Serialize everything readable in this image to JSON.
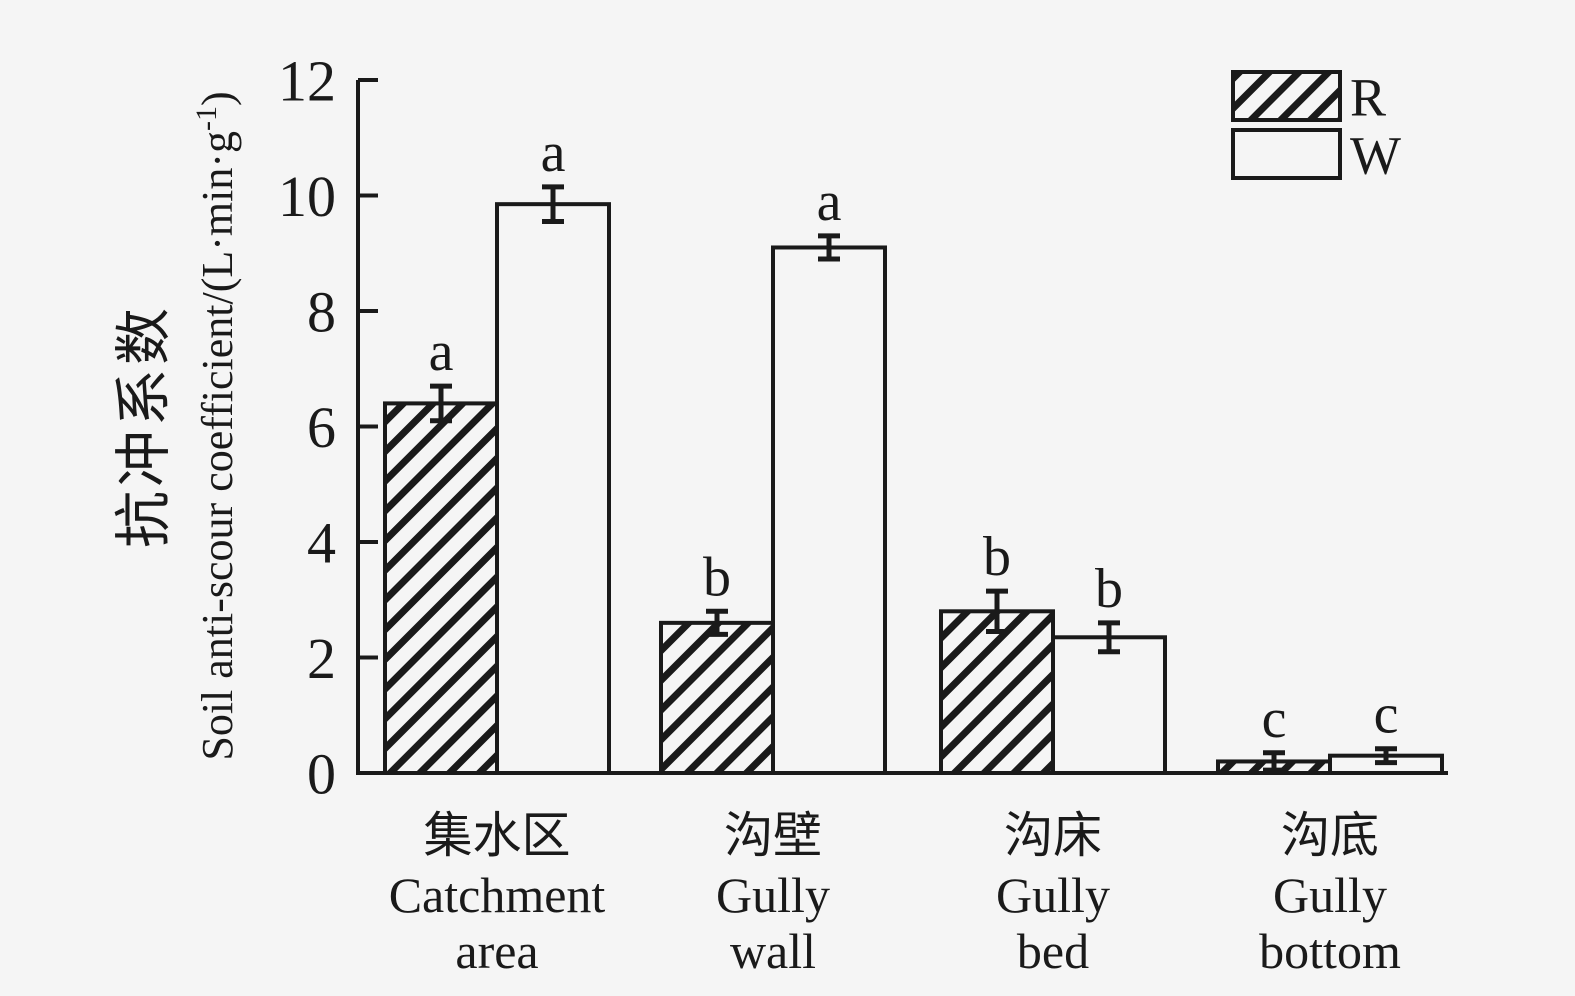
{
  "chart_data": {
    "type": "bar",
    "title": "",
    "categories": [
      {
        "zh": "集水区",
        "en_line1": "Catchment",
        "en_line2": "area"
      },
      {
        "zh": "沟壁",
        "en_line1": "Gully",
        "en_line2": "wall"
      },
      {
        "zh": "沟床",
        "en_line1": "Gully",
        "en_line2": "bed"
      },
      {
        "zh": "沟底",
        "en_line1": "Gully",
        "en_line2": "bottom"
      }
    ],
    "series": [
      {
        "name": "R",
        "swatch": "hatched",
        "values": [
          6.4,
          2.6,
          2.8,
          0.2
        ],
        "errors": [
          0.3,
          0.2,
          0.35,
          0.15
        ],
        "sig_letters": [
          "a",
          "b",
          "b",
          "c"
        ]
      },
      {
        "name": "W",
        "swatch": "plain",
        "values": [
          9.85,
          9.1,
          2.35,
          0.3
        ],
        "errors": [
          0.3,
          0.2,
          0.25,
          0.12
        ],
        "sig_letters": [
          "a",
          "a",
          "b",
          "c"
        ]
      }
    ],
    "ylabel_zh": "抗冲系数",
    "ylabel_en": {
      "prefix": "Soil anti-scour coefficient/(L·min·g",
      "superscript": "-1",
      "suffix": ")"
    },
    "yticks": [
      0,
      2,
      4,
      6,
      8,
      10,
      12
    ],
    "ylim": [
      0,
      12
    ],
    "grid": false,
    "legend_position": "top-right",
    "colors": {
      "ink": "#1a1a1a",
      "background": "#f5f5f5",
      "bar_fill": "#f5f5f5"
    }
  }
}
